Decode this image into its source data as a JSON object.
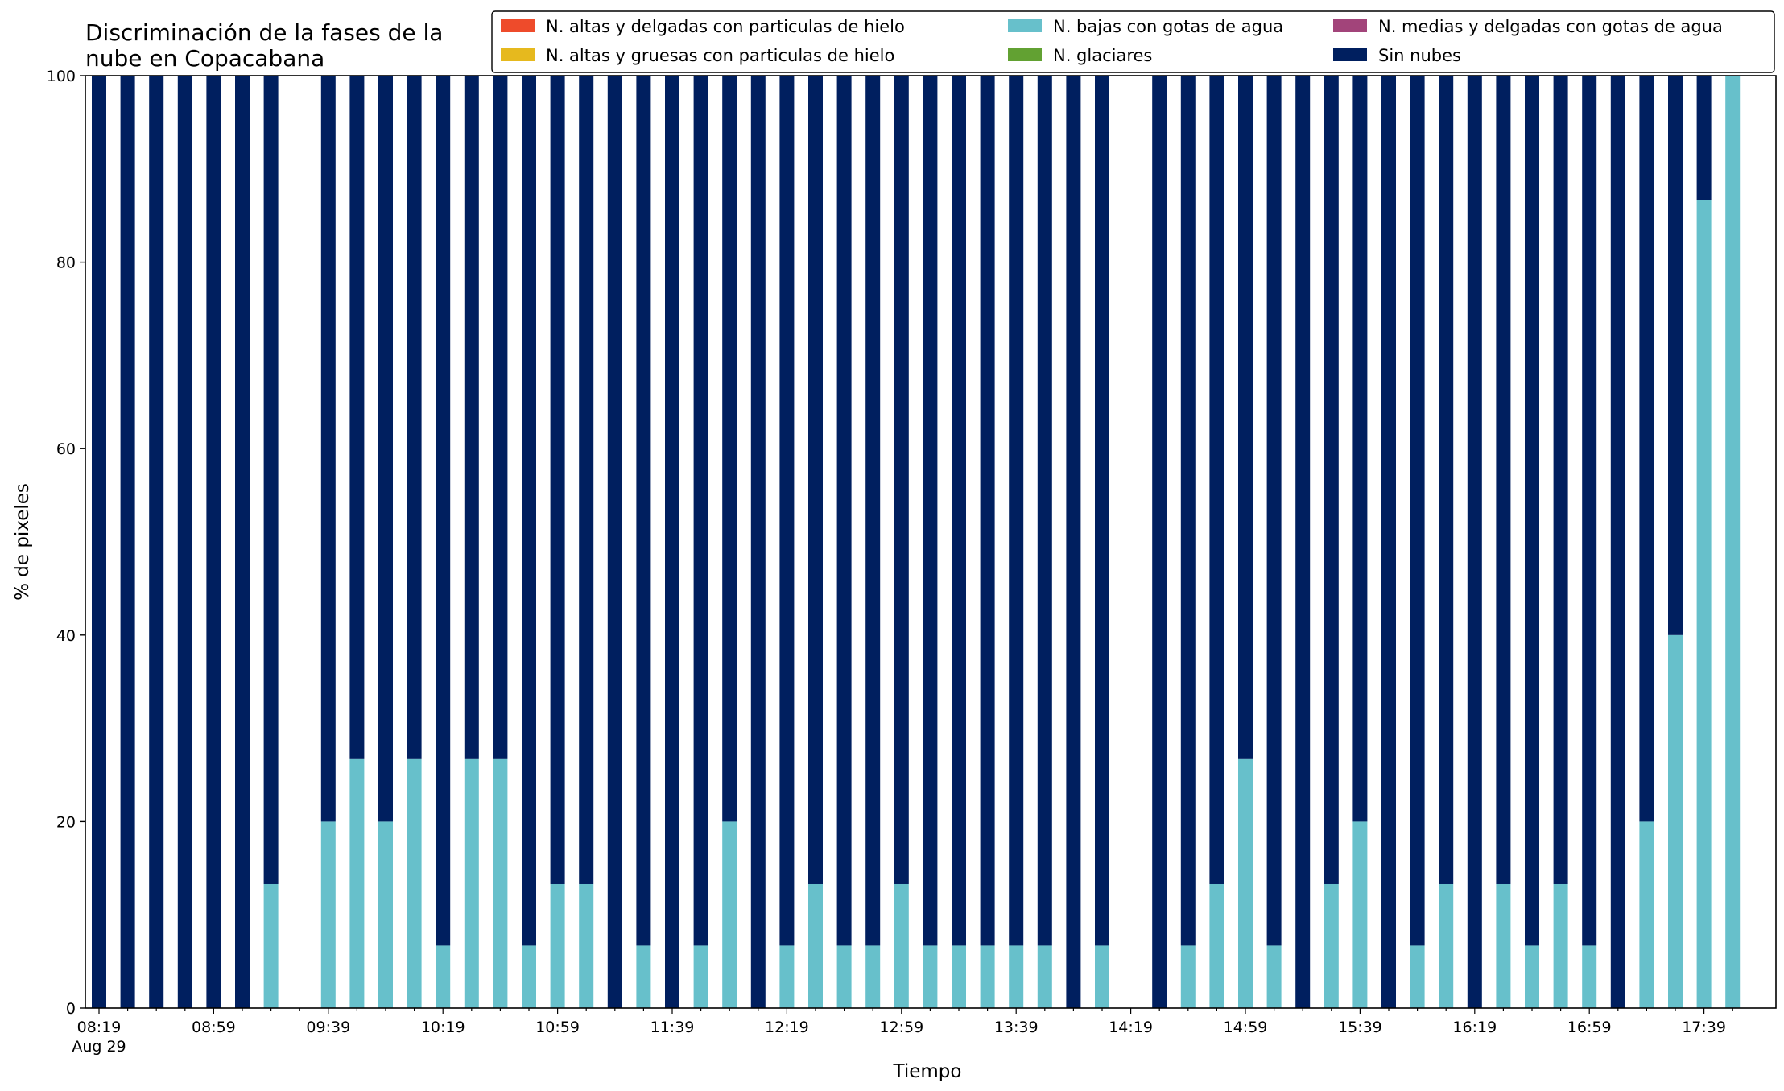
{
  "chart_data": {
    "type": "bar",
    "stacked": true,
    "title_lines": [
      "Discriminación de la fases de la",
      "nube en Copacabana"
    ],
    "xlabel": "Tiempo",
    "ylabel": "% de pixeles",
    "ylim": [
      0,
      100
    ],
    "yticks": [
      "0",
      "20",
      "40",
      "60",
      "80",
      "100"
    ],
    "grid": false,
    "legend_position": "top-right",
    "x_start": "08:19",
    "x_step_minutes": 10,
    "x_date_label": "Aug 29",
    "xtick_labels": [
      "08:19",
      "08:59",
      "09:39",
      "10:19",
      "10:59",
      "11:39",
      "12:19",
      "12:59",
      "13:39",
      "14:19",
      "14:59",
      "15:39",
      "16:19",
      "16:59",
      "17:39"
    ],
    "categories": [
      "08:19",
      "08:29",
      "08:39",
      "08:49",
      "08:59",
      "09:09",
      "09:19",
      "09:29",
      "09:39",
      "09:49",
      "09:59",
      "10:09",
      "10:19",
      "10:29",
      "10:39",
      "10:49",
      "10:59",
      "11:09",
      "11:19",
      "11:29",
      "11:39",
      "11:49",
      "11:59",
      "12:09",
      "12:19",
      "12:29",
      "12:39",
      "12:49",
      "12:59",
      "13:09",
      "13:19",
      "13:29",
      "13:39",
      "13:49",
      "13:59",
      "14:09",
      "14:19",
      "14:29",
      "14:39",
      "14:49",
      "14:59",
      "15:09",
      "15:19",
      "15:29",
      "15:39",
      "15:49",
      "15:59",
      "16:09",
      "16:19",
      "16:29",
      "16:39",
      "16:49",
      "16:59",
      "17:09",
      "17:19",
      "17:29",
      "17:39",
      "17:49"
    ],
    "series": [
      {
        "name": "N. altas y delgadas con particulas de hielo",
        "color": "#ee4b2b",
        "values": [
          0,
          0,
          0,
          0,
          0,
          0,
          0,
          null,
          0,
          0,
          0,
          0,
          0,
          0,
          0,
          0,
          0,
          0,
          0,
          0,
          0,
          0,
          0,
          0,
          0,
          0,
          0,
          0,
          0,
          0,
          0,
          0,
          0,
          0,
          0,
          0,
          null,
          0,
          0,
          0,
          0,
          0,
          0,
          0,
          0,
          0,
          0,
          0,
          0,
          0,
          0,
          0,
          0,
          0,
          0,
          0,
          0,
          0
        ]
      },
      {
        "name": "N. altas y gruesas con particulas de hielo",
        "color": "#e6b91e",
        "values": [
          0,
          0,
          0,
          0,
          0,
          0,
          0,
          null,
          0,
          0,
          0,
          0,
          0,
          0,
          0,
          0,
          0,
          0,
          0,
          0,
          0,
          0,
          0,
          0,
          0,
          0,
          0,
          0,
          0,
          0,
          0,
          0,
          0,
          0,
          0,
          0,
          null,
          0,
          0,
          0,
          0,
          0,
          0,
          0,
          0,
          0,
          0,
          0,
          0,
          0,
          0,
          0,
          0,
          0,
          0,
          0,
          0,
          0
        ]
      },
      {
        "name": "N. bajas con gotas de agua",
        "color": "#67c0cb",
        "values": [
          0,
          0,
          0,
          0,
          0,
          0,
          13.3,
          null,
          20,
          26.7,
          20,
          26.7,
          6.7,
          26.7,
          26.7,
          6.7,
          13.3,
          13.3,
          0,
          6.7,
          0,
          6.7,
          20,
          0,
          6.7,
          13.3,
          6.7,
          6.7,
          13.3,
          6.7,
          6.7,
          6.7,
          6.7,
          6.7,
          0,
          6.7,
          null,
          0,
          6.7,
          13.3,
          26.7,
          6.7,
          0,
          13.3,
          20,
          0,
          6.7,
          13.3,
          0,
          13.3,
          6.7,
          13.3,
          6.7,
          0,
          20,
          40,
          86.7,
          100
        ]
      },
      {
        "name": "N. glaciares",
        "color": "#62a132",
        "values": [
          0,
          0,
          0,
          0,
          0,
          0,
          0,
          null,
          0,
          0,
          0,
          0,
          0,
          0,
          0,
          0,
          0,
          0,
          0,
          0,
          0,
          0,
          0,
          0,
          0,
          0,
          0,
          0,
          0,
          0,
          0,
          0,
          0,
          0,
          0,
          0,
          null,
          0,
          0,
          0,
          0,
          0,
          0,
          0,
          0,
          0,
          0,
          0,
          0,
          0,
          0,
          0,
          0,
          0,
          0,
          0,
          0,
          0
        ]
      },
      {
        "name": "N. medias y delgadas con gotas de agua",
        "color": "#a2447a",
        "values": [
          0,
          0,
          0,
          0,
          0,
          0,
          0,
          null,
          0,
          0,
          0,
          0,
          0,
          0,
          0,
          0,
          0,
          0,
          0,
          0,
          0,
          0,
          0,
          0,
          0,
          0,
          0,
          0,
          0,
          0,
          0,
          0,
          0,
          0,
          0,
          0,
          null,
          0,
          0,
          0,
          0,
          0,
          0,
          0,
          0,
          0,
          0,
          0,
          0,
          0,
          0,
          0,
          0,
          0,
          0,
          0,
          0,
          0
        ]
      },
      {
        "name": "Sin nubes",
        "color": "#001f5f",
        "values": [
          100,
          100,
          100,
          100,
          100,
          100,
          86.7,
          null,
          80,
          73.3,
          80,
          73.3,
          93.3,
          73.3,
          73.3,
          93.3,
          86.7,
          86.7,
          100,
          93.3,
          100,
          93.3,
          80,
          100,
          93.3,
          86.7,
          93.3,
          93.3,
          86.7,
          93.3,
          93.3,
          93.3,
          93.3,
          93.3,
          100,
          93.3,
          null,
          100,
          93.3,
          86.7,
          73.3,
          93.3,
          100,
          86.7,
          80,
          100,
          93.3,
          86.7,
          100,
          86.7,
          93.3,
          86.7,
          93.3,
          100,
          80,
          60,
          13.3,
          0
        ]
      }
    ],
    "legend_layout": [
      [
        "N. altas y delgadas con particulas de hielo",
        "N. bajas con gotas de agua",
        "N. medias y delgadas con gotas de agua"
      ],
      [
        "N. altas y gruesas con particulas de hielo",
        "N. glaciares",
        "Sin nubes"
      ]
    ]
  }
}
